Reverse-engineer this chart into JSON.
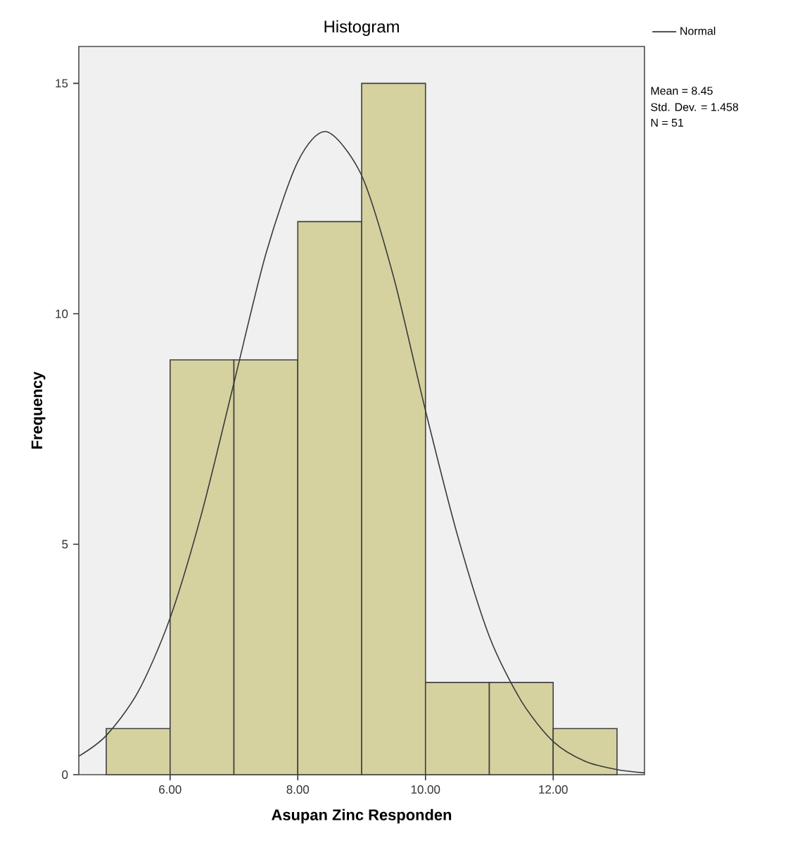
{
  "chart_data": {
    "type": "histogram",
    "title": "Histogram",
    "xlabel": "Asupan Zinc Responden",
    "ylabel": "Frequency",
    "xlim": [
      4.57,
      13.43
    ],
    "ylim": [
      0,
      15.8
    ],
    "xticks": [
      {
        "value": 6,
        "label": "6.00"
      },
      {
        "value": 8,
        "label": "8.00"
      },
      {
        "value": 10,
        "label": "10.00"
      },
      {
        "value": 12,
        "label": "12.00"
      }
    ],
    "yticks": [
      0,
      5,
      10,
      15
    ],
    "legend": "top right",
    "annotations": [
      "Mean = 8.45",
      "Std. Dev. = 1.458",
      "N = 51"
    ],
    "series": [
      {
        "color": "#d5d2a0",
        "bins": [
          5,
          6,
          7,
          8,
          9,
          10,
          11,
          12,
          13
        ],
        "values": [
          1,
          9,
          9,
          12,
          15,
          2,
          2,
          1
        ]
      },
      {
        "type": "line",
        "name": "Normal",
        "color": "#3a3a3a",
        "x": [
          4.57,
          5.0,
          5.5,
          6.0,
          6.5,
          7.0,
          7.5,
          8.0,
          8.45,
          9.0,
          9.5,
          10.0,
          10.5,
          11.0,
          11.5,
          12.0,
          12.5,
          13.0,
          13.43
        ],
        "values": [
          0.4,
          0.85,
          1.8,
          3.4,
          5.7,
          8.5,
          11.3,
          13.3,
          13.95,
          13.0,
          10.8,
          7.9,
          5.2,
          3.0,
          1.6,
          0.72,
          0.29,
          0.11,
          0.04
        ]
      }
    ]
  }
}
